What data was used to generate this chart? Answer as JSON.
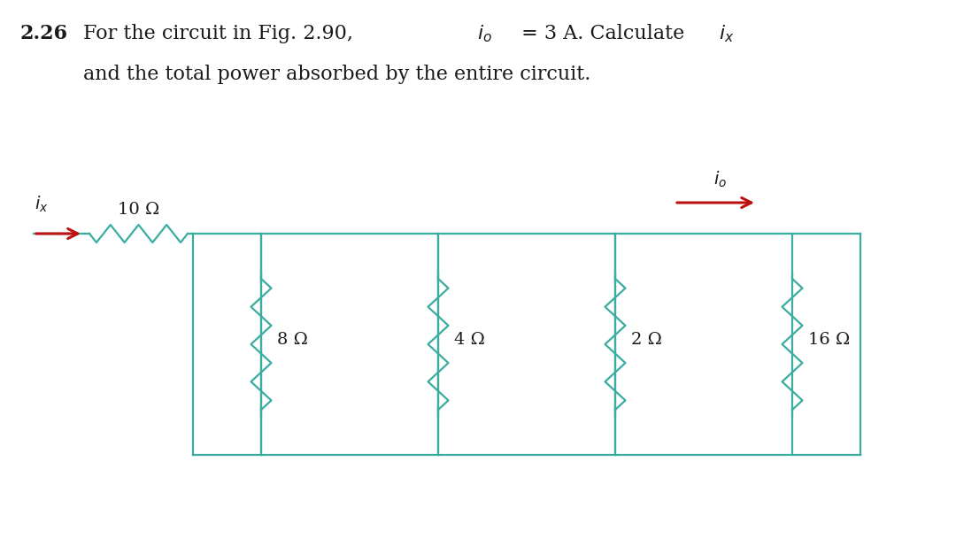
{
  "bg_color": "#ffffff",
  "circuit_color": "#3aada0",
  "resistor_color": "#3aada0",
  "arrow_color": "#bb1111",
  "text_color": "#1a1a1a",
  "fig_width": 10.8,
  "fig_height": 6.26,
  "title_num": "2.26",
  "title_rest1": "  For the circuit in Fig. 2.90, ",
  "title_io": "i",
  "title_io_sub": "o",
  "title_rest1b": " = 3 A. Calculate ",
  "title_ix": "i",
  "title_ix_sub": "x",
  "title_line2": "and the total power absorbed by the entire circuit.",
  "ix_label": "i",
  "ix_sub": "x",
  "io_label": "i",
  "io_sub": "o",
  "res_labels": [
    "8",
    "4",
    "2",
    "16"
  ],
  "res_10_label": "10 Ω",
  "omega": "Ω"
}
